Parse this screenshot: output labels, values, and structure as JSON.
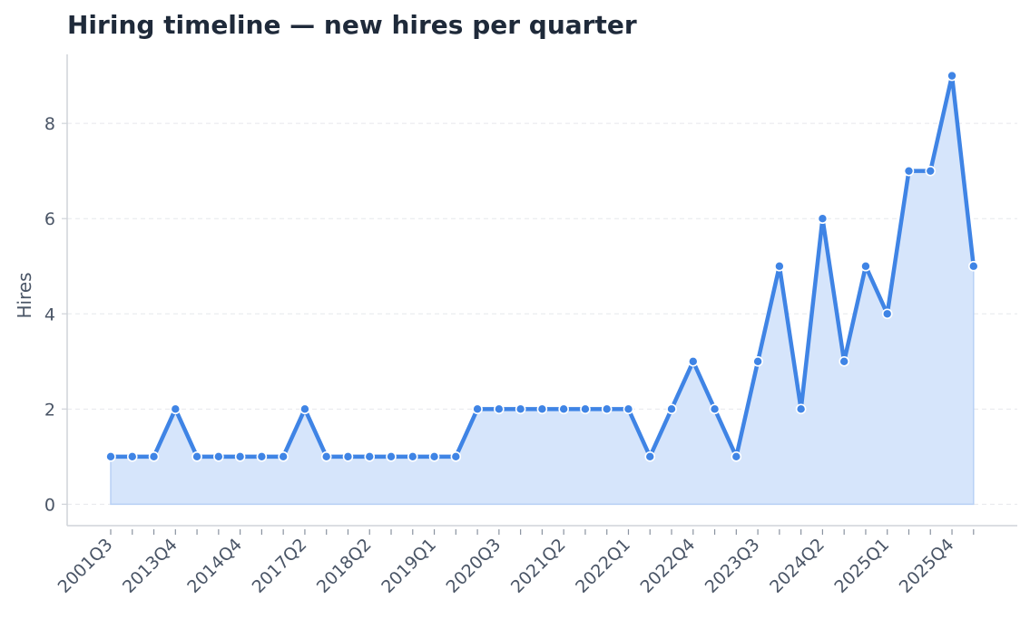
{
  "chart_data": {
    "type": "area",
    "title": "Hiring timeline — new hires per quarter",
    "xlabel": "",
    "ylabel": "Hires",
    "ylim": [
      -0.45,
      9.45
    ],
    "yticks": [
      0,
      2,
      4,
      6,
      8
    ],
    "grid": true,
    "x_tick_labels": [
      "2001Q3",
      "2013Q4",
      "2014Q4",
      "2017Q2",
      "2018Q2",
      "2019Q1",
      "2020Q3",
      "2021Q2",
      "2022Q1",
      "2022Q4",
      "2023Q3",
      "2024Q2",
      "2025Q1",
      "2025Q4"
    ],
    "series": [
      {
        "values": [
          1,
          1,
          1,
          2,
          1,
          1,
          1,
          1,
          1,
          2,
          1,
          1,
          1,
          1,
          1,
          1,
          1,
          2,
          2,
          2,
          2,
          2,
          2,
          2,
          2,
          1,
          2,
          3,
          2,
          1,
          3,
          5,
          2,
          6,
          3,
          5,
          4,
          7,
          7,
          9,
          5
        ]
      }
    ],
    "colors": {
      "line": "#3f84e5",
      "fill": "#d6e5fb",
      "grid": "#e6e8ec",
      "axis": "#cfd3d9",
      "text": "#4a5566",
      "title": "#1f2a3a"
    }
  }
}
